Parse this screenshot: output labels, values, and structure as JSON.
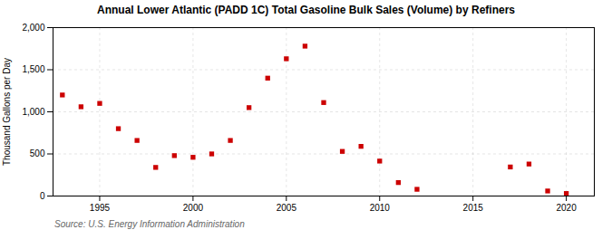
{
  "chart_data": {
    "type": "scatter",
    "title": "Annual Lower Atlantic (PADD 1C) Total Gasoline Bulk Sales (Volume) by Refiners",
    "ylabel": "Thousand Gallons per Day",
    "source": "Source: U.S. Energy Information Administration",
    "x": [
      1993,
      1994,
      1995,
      1996,
      1997,
      1998,
      1999,
      2000,
      2001,
      2002,
      2003,
      2004,
      2005,
      2006,
      2007,
      2008,
      2009,
      2010,
      2011,
      2012,
      2017,
      2018,
      2019,
      2020
    ],
    "values": [
      1200,
      1060,
      1100,
      800,
      660,
      340,
      480,
      460,
      500,
      660,
      1050,
      1400,
      1630,
      1780,
      1110,
      530,
      590,
      415,
      160,
      80,
      345,
      380,
      60,
      30
    ],
    "color": "#cc0000",
    "marker": "square",
    "xlim": [
      1992.5,
      2021.5
    ],
    "ylim": [
      0,
      2000
    ],
    "xticks": [
      1995,
      2000,
      2005,
      2010,
      2015,
      2020
    ],
    "yticks": [
      0,
      500,
      {
        "value": 1000,
        "label": "1,000"
      },
      {
        "value": 1500,
        "label": "1,500"
      },
      {
        "value": 2000,
        "label": "2,000"
      }
    ],
    "grid": true
  }
}
